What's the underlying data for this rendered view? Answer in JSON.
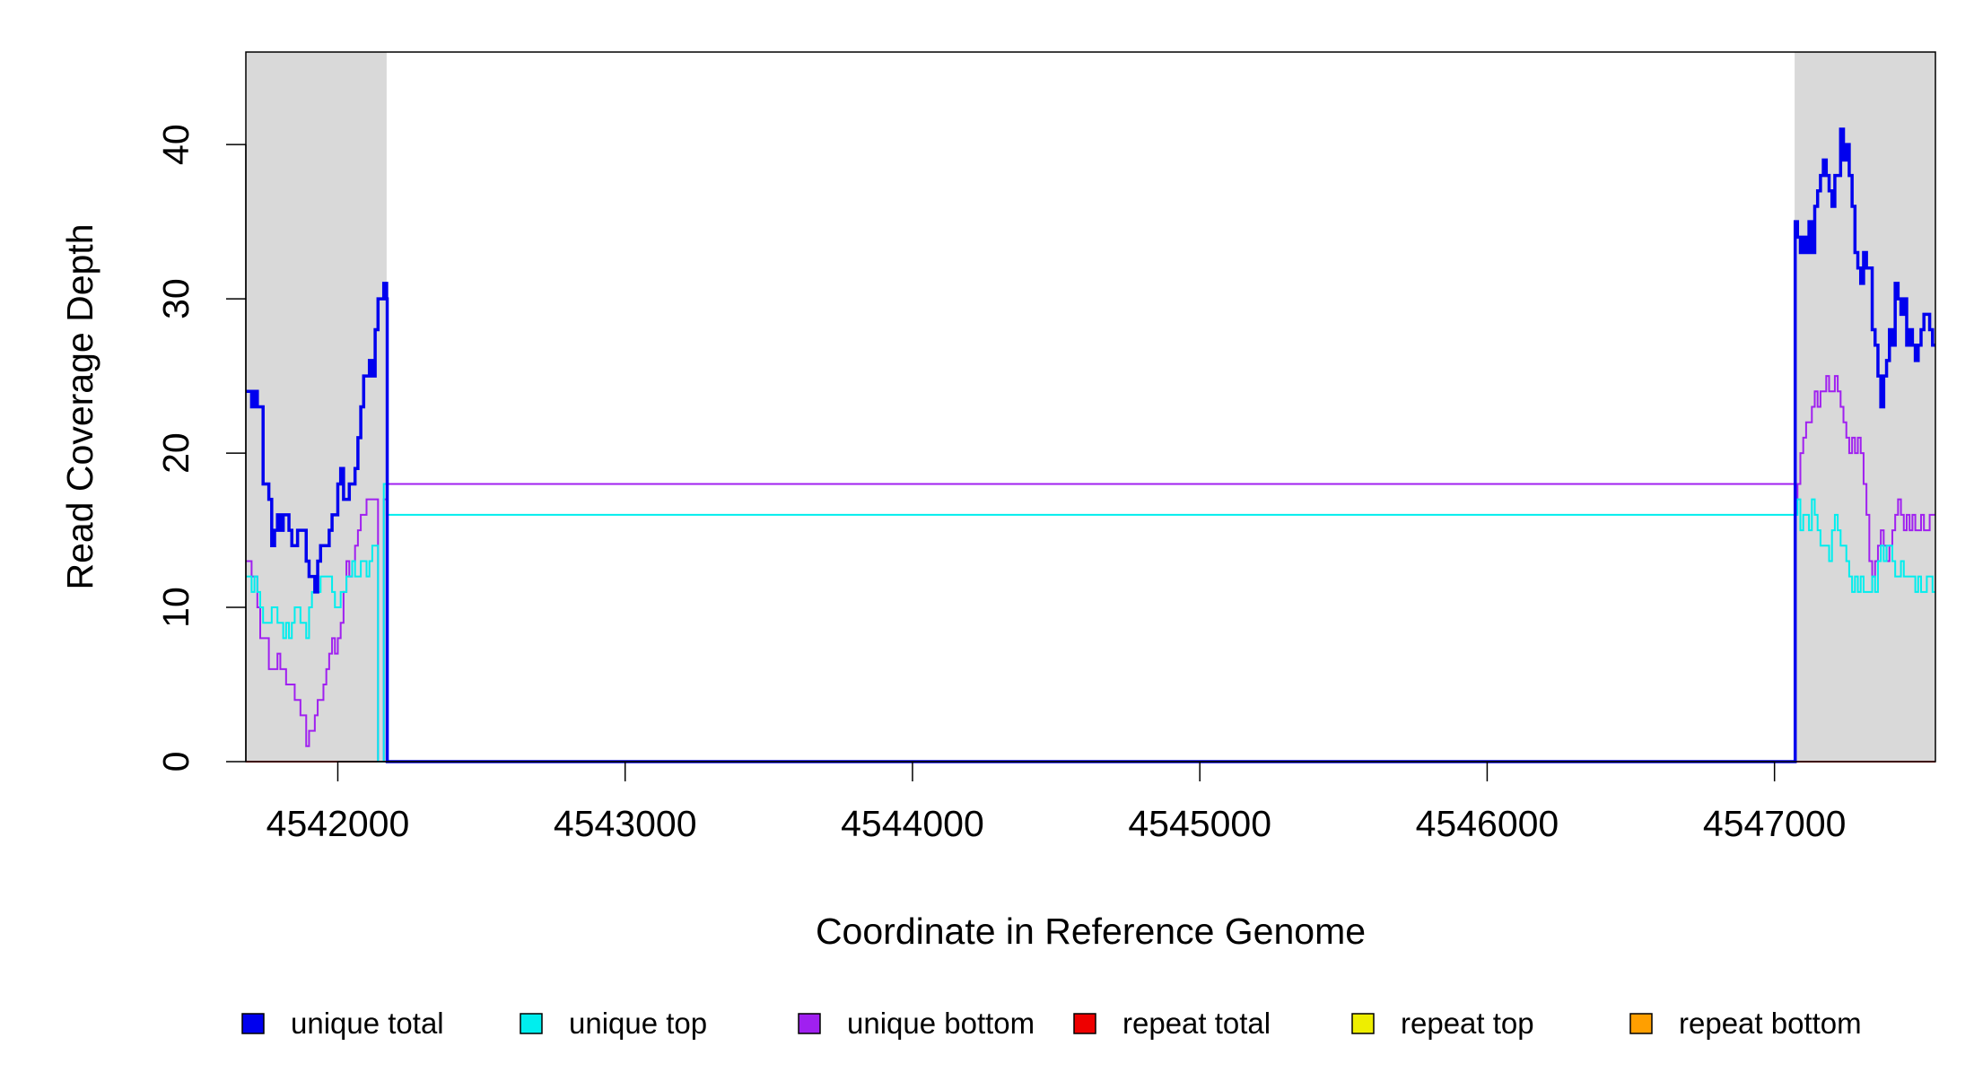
{
  "chart_data": {
    "type": "line",
    "xlabel": "Coordinate in Reference Genome",
    "ylabel": "Read Coverage Depth",
    "xlim": [
      4541680,
      4547560
    ],
    "ylim": [
      0,
      46
    ],
    "x_ticks": [
      4542000,
      4543000,
      4544000,
      4545000,
      4546000,
      4547000
    ],
    "y_ticks": [
      0,
      10,
      20,
      30,
      40
    ],
    "shaded_regions": [
      {
        "x_start": 4541680,
        "x_end": 4542170,
        "color": "#d9d9d9"
      },
      {
        "x_start": 4547070,
        "x_end": 4547560,
        "color": "#d9d9d9"
      }
    ],
    "legend_position": "bottom",
    "legend": [
      {
        "label": "unique total",
        "color": "#0000ee"
      },
      {
        "label": "unique top",
        "color": "#00eeee"
      },
      {
        "label": "unique bottom",
        "color": "#a020f0"
      },
      {
        "label": "repeat total",
        "color": "#ee0000"
      },
      {
        "label": "repeat top",
        "color": "#eeee00"
      },
      {
        "label": "repeat bottom",
        "color": "#ff9f00"
      }
    ],
    "series": [
      {
        "name": "unique total",
        "color": "#0000ee",
        "width": 3.5,
        "x": [
          4541680,
          4541700,
          4541710,
          4541720,
          4541730,
          4541740,
          4541760,
          4541770,
          4541780,
          4541790,
          4541800,
          4541810,
          4541830,
          4541840,
          4541850,
          4541860,
          4541870,
          4541890,
          4541900,
          4541910,
          4541920,
          4541930,
          4541940,
          4541950,
          4541970,
          4541980,
          4541990,
          4542000,
          4542010,
          4542020,
          4542040,
          4542050,
          4542060,
          4542070,
          4542080,
          4542090,
          4542100,
          4542110,
          4542120,
          4542130,
          4542140,
          4542150,
          4542160,
          4542170,
          4542172,
          4547070,
          4547072,
          4547080,
          4547090,
          4547100,
          4547110,
          4547120,
          4547130,
          4547140,
          4547150,
          4547160,
          4547170,
          4547180,
          4547190,
          4547200,
          4547210,
          4547220,
          4547230,
          4547240,
          4547250,
          4547260,
          4547270,
          4547280,
          4547290,
          4547300,
          4547310,
          4547320,
          4547330,
          4547340,
          4547350,
          4547360,
          4547370,
          4547380,
          4547390,
          4547400,
          4547410,
          4547420,
          4547430,
          4547440,
          4547450,
          4547460,
          4547470,
          4547480,
          4547490,
          4547500,
          4547510,
          4547520,
          4547530,
          4547540,
          4547550,
          4547560
        ],
        "y": [
          24,
          23,
          24,
          23,
          23,
          18,
          17,
          14,
          15,
          16,
          15,
          16,
          15,
          14,
          14,
          15,
          15,
          13,
          12,
          12,
          11,
          13,
          14,
          14,
          15,
          16,
          16,
          18,
          19,
          17,
          18,
          18,
          19,
          21,
          23,
          25,
          25,
          26,
          25,
          28,
          30,
          30,
          31,
          30,
          0,
          0,
          35,
          34,
          33,
          34,
          33,
          35,
          33,
          36,
          37,
          38,
          39,
          38,
          37,
          36,
          38,
          38,
          41,
          39,
          40,
          38,
          36,
          33,
          32,
          31,
          33,
          32,
          32,
          28,
          27,
          25,
          23,
          25,
          26,
          28,
          27,
          31,
          30,
          29,
          30,
          27,
          28,
          27,
          26,
          27,
          28,
          29,
          29,
          28,
          27,
          27
        ],
        "y_override_note": ""
      },
      {
        "name": "unique top",
        "color": "#00eeee",
        "width": 2,
        "x": [
          4541680,
          4541700,
          4541710,
          4541720,
          4541730,
          4541740,
          4541760,
          4541770,
          4541780,
          4541790,
          4541800,
          4541810,
          4541820,
          4541830,
          4541840,
          4541850,
          4541860,
          4541870,
          4541880,
          4541890,
          4541900,
          4541910,
          4541920,
          4541930,
          4541940,
          4541950,
          4541960,
          4541970,
          4541980,
          4541990,
          4542000,
          4542010,
          4542020,
          4542030,
          4542040,
          4542050,
          4542060,
          4542070,
          4542080,
          4542090,
          4542100,
          4542110,
          4542120,
          4542130,
          4542140,
          4542150,
          4542160,
          4542170,
          4542172,
          4547070,
          4547072,
          4547080,
          4547090,
          4547100,
          4547110,
          4547120,
          4547130,
          4547140,
          4547150,
          4547160,
          4547170,
          4547180,
          4547190,
          4547200,
          4547210,
          4547220,
          4547230,
          4547240,
          4547250,
          4547260,
          4547270,
          4547280,
          4547290,
          4547300,
          4547310,
          4547320,
          4547330,
          4547340,
          4547350,
          4547360,
          4547370,
          4547380,
          4547390,
          4547400,
          4547410,
          4547420,
          4547430,
          4547440,
          4547450,
          4547460,
          4547470,
          4547480,
          4547490,
          4547500,
          4547510,
          4547520,
          4547530,
          4547540,
          4547550,
          4547560
        ],
        "y": [
          12,
          11,
          12,
          11,
          10,
          9,
          9,
          10,
          10,
          9,
          9,
          8,
          9,
          8,
          9,
          10,
          10,
          9,
          9,
          8,
          10,
          11,
          12,
          11,
          12,
          12,
          12,
          12,
          11,
          10,
          10,
          11,
          11,
          12,
          12,
          13,
          12,
          12,
          13,
          13,
          12,
          13,
          14,
          14,
          0,
          0,
          18,
          17,
          16,
          17,
          16,
          17,
          15,
          16,
          16,
          15,
          17,
          16,
          15,
          14,
          14,
          14,
          13,
          15,
          16,
          15,
          14,
          14,
          13,
          12,
          11,
          12,
          11,
          12,
          11,
          11,
          11,
          12,
          11,
          13,
          14,
          13,
          14,
          14,
          13,
          12,
          12,
          13,
          12,
          12,
          12,
          12,
          11,
          12,
          11,
          11,
          12,
          12,
          11,
          11
        ],
        "y_override_note": ""
      },
      {
        "name": "unique bottom",
        "color": "#a020f0",
        "width": 2,
        "x": [
          4541680,
          4541700,
          4541710,
          4541720,
          4541730,
          4541740,
          4541760,
          4541770,
          4541780,
          4541790,
          4541800,
          4541810,
          4541820,
          4541830,
          4541840,
          4541850,
          4541860,
          4541870,
          4541880,
          4541890,
          4541900,
          4541910,
          4541920,
          4541930,
          4541940,
          4541950,
          4541960,
          4541970,
          4541980,
          4541990,
          4542000,
          4542010,
          4542020,
          4542030,
          4542040,
          4542050,
          4542060,
          4542070,
          4542080,
          4542090,
          4542100,
          4542110,
          4542120,
          4542130,
          4542140,
          4542150,
          4542160,
          4542170,
          4542172,
          4547070,
          4547072,
          4547080,
          4547090,
          4547100,
          4547110,
          4547120,
          4547130,
          4547140,
          4547150,
          4547160,
          4547170,
          4547180,
          4547190,
          4547200,
          4547210,
          4547220,
          4547230,
          4547240,
          4547250,
          4547260,
          4547270,
          4547280,
          4547290,
          4547300,
          4547310,
          4547320,
          4547330,
          4547340,
          4547350,
          4547360,
          4547370,
          4547380,
          4547390,
          4547400,
          4547410,
          4547420,
          4547430,
          4547440,
          4547450,
          4547460,
          4547470,
          4547480,
          4547490,
          4547500,
          4547510,
          4547520,
          4547530,
          4547540,
          4547550,
          4547560
        ],
        "y": [
          13,
          12,
          12,
          10,
          8,
          8,
          6,
          6,
          6,
          7,
          6,
          6,
          5,
          5,
          5,
          4,
          4,
          3,
          3,
          1,
          2,
          2,
          3,
          4,
          4,
          5,
          6,
          7,
          8,
          7,
          8,
          9,
          11,
          13,
          12,
          13,
          14,
          15,
          16,
          16,
          17,
          17,
          17,
          17,
          0,
          0,
          17,
          16,
          18,
          17,
          17,
          18,
          20,
          21,
          22,
          22,
          23,
          24,
          23,
          24,
          24,
          25,
          24,
          24,
          25,
          24,
          23,
          22,
          21,
          20,
          21,
          20,
          21,
          20,
          18,
          16,
          13,
          12,
          13,
          14,
          15,
          14,
          13,
          14,
          15,
          16,
          17,
          16,
          15,
          16,
          15,
          16,
          15,
          15,
          16,
          15,
          15,
          16,
          16,
          16
        ],
        "y_override_note": ""
      },
      {
        "name": "repeat total",
        "color": "#ee0000",
        "width": 2,
        "x": [
          4541680,
          4547560
        ],
        "y": [
          0,
          0
        ],
        "y_override_note": ""
      },
      {
        "name": "repeat top",
        "color": "#eeee00",
        "width": 2,
        "x": [
          4541680,
          4547560
        ],
        "y": [
          0,
          0
        ],
        "y_override_note": ""
      },
      {
        "name": "repeat bottom",
        "color": "#ff9f00",
        "width": 2,
        "x": [
          4541680,
          4547560
        ],
        "y": [
          0,
          0
        ],
        "y_override_note": ""
      }
    ]
  }
}
